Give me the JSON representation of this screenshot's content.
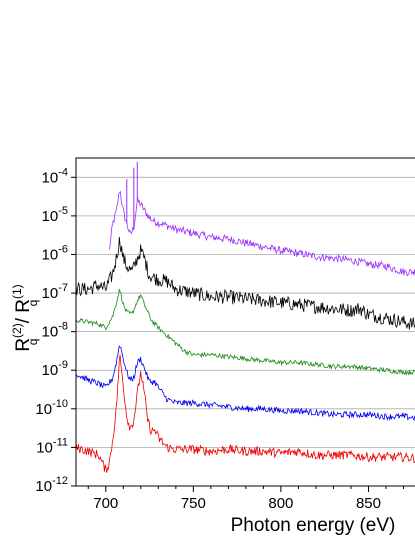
{
  "chart_data": {
    "type": "line",
    "title": "",
    "xlabel": "Photon energy (eV)",
    "ylabel": "R_q^(2) / R_q^(1)",
    "ylabel_parts": {
      "main": "R",
      "sub": "q",
      "sup1": "(2)",
      "slash": " / ",
      "sup2": "(1)"
    },
    "xlim": [
      683,
      880
    ],
    "ylim_log10": [
      -12,
      -3.5
    ],
    "yscale": "log",
    "grid": "horizontal",
    "x_ticks": [
      700,
      750,
      800,
      850
    ],
    "x_tick_labels": [
      "700",
      "750",
      "800",
      "850"
    ],
    "y_ticks": [
      {
        "base": "10",
        "exp": "-4",
        "log10": -4
      },
      {
        "base": "10",
        "exp": "-5",
        "log10": -5
      },
      {
        "base": "10",
        "exp": "-6",
        "log10": -6
      },
      {
        "base": "10",
        "exp": "-7",
        "log10": -7
      },
      {
        "base": "10",
        "exp": "-8",
        "log10": -8
      },
      {
        "base": "10",
        "exp": "-9",
        "log10": -9
      },
      {
        "base": "10",
        "exp": "-10",
        "log10": -10
      },
      {
        "base": "10",
        "exp": "-11",
        "log10": -11
      },
      {
        "base": "10",
        "exp": "-12",
        "log10": -12
      }
    ],
    "series": [
      {
        "color": "#9b30ff",
        "points": [
          [
            702,
            -5.9
          ],
          [
            704,
            -5.2
          ],
          [
            706,
            -4.9
          ],
          [
            708,
            -4.3
          ],
          [
            710,
            -4.9
          ],
          [
            712,
            -5.2
          ],
          [
            714,
            -5.5
          ],
          [
            716,
            -5.3
          ],
          [
            718,
            -4.6
          ],
          [
            720,
            -4.7
          ],
          [
            722,
            -4.85
          ],
          [
            725,
            -5.05
          ],
          [
            728,
            -5.15
          ],
          [
            732,
            -5.2
          ],
          [
            740,
            -5.35
          ],
          [
            750,
            -5.45
          ],
          [
            760,
            -5.55
          ],
          [
            770,
            -5.6
          ],
          [
            780,
            -5.7
          ],
          [
            790,
            -5.8
          ],
          [
            800,
            -5.9
          ],
          [
            810,
            -5.97
          ],
          [
            820,
            -6.05
          ],
          [
            830,
            -6.1
          ],
          [
            840,
            -6.15
          ],
          [
            850,
            -6.25
          ],
          [
            860,
            -6.3
          ],
          [
            870,
            -6.45
          ],
          [
            880,
            -6.45
          ]
        ],
        "spikes": [
          [
            712,
            -4.05
          ],
          [
            716,
            -3.75
          ],
          [
            718,
            -3.6
          ]
        ]
      },
      {
        "color": "#000000",
        "points": [
          [
            683,
            -6.9
          ],
          [
            690,
            -6.9
          ],
          [
            696,
            -6.8
          ],
          [
            700,
            -6.9
          ],
          [
            704,
            -6.5
          ],
          [
            706,
            -6.1
          ],
          [
            708,
            -5.6
          ],
          [
            710,
            -6.1
          ],
          [
            712,
            -6.3
          ],
          [
            715,
            -6.45
          ],
          [
            718,
            -6.1
          ],
          [
            720,
            -5.9
          ],
          [
            722,
            -6.1
          ],
          [
            725,
            -6.55
          ],
          [
            730,
            -6.65
          ],
          [
            735,
            -6.7
          ],
          [
            740,
            -6.9
          ],
          [
            750,
            -7.0
          ],
          [
            760,
            -7.1
          ],
          [
            770,
            -7.1
          ],
          [
            780,
            -7.15
          ],
          [
            790,
            -7.2
          ],
          [
            800,
            -7.25
          ],
          [
            810,
            -7.3
          ],
          [
            820,
            -7.35
          ],
          [
            830,
            -7.4
          ],
          [
            840,
            -7.45
          ],
          [
            845,
            -7.4
          ],
          [
            850,
            -7.55
          ],
          [
            860,
            -7.65
          ],
          [
            870,
            -7.75
          ],
          [
            880,
            -7.85
          ]
        ],
        "noise": 0.18
      },
      {
        "color": "#1a8a1a",
        "points": [
          [
            683,
            -7.7
          ],
          [
            690,
            -7.75
          ],
          [
            696,
            -7.8
          ],
          [
            700,
            -7.9
          ],
          [
            704,
            -7.6
          ],
          [
            708,
            -6.9
          ],
          [
            710,
            -7.3
          ],
          [
            712,
            -7.5
          ],
          [
            715,
            -7.55
          ],
          [
            718,
            -7.2
          ],
          [
            720,
            -7.05
          ],
          [
            722,
            -7.3
          ],
          [
            726,
            -7.7
          ],
          [
            730,
            -7.9
          ],
          [
            735,
            -8.1
          ],
          [
            740,
            -8.3
          ],
          [
            745,
            -8.5
          ],
          [
            750,
            -8.6
          ],
          [
            760,
            -8.6
          ],
          [
            770,
            -8.65
          ],
          [
            780,
            -8.7
          ],
          [
            790,
            -8.75
          ],
          [
            800,
            -8.8
          ],
          [
            810,
            -8.8
          ],
          [
            820,
            -8.85
          ],
          [
            830,
            -8.9
          ],
          [
            840,
            -8.9
          ],
          [
            850,
            -8.95
          ],
          [
            860,
            -9.0
          ],
          [
            870,
            -9.05
          ],
          [
            880,
            -9.05
          ]
        ],
        "noise": 0.06
      },
      {
        "color": "#0000ee",
        "points": [
          [
            683,
            -9.1
          ],
          [
            690,
            -9.25
          ],
          [
            696,
            -9.35
          ],
          [
            700,
            -9.45
          ],
          [
            704,
            -9.2
          ],
          [
            706,
            -8.8
          ],
          [
            708,
            -8.3
          ],
          [
            710,
            -8.7
          ],
          [
            712,
            -9.05
          ],
          [
            714,
            -9.25
          ],
          [
            716,
            -9.2
          ],
          [
            718,
            -8.8
          ],
          [
            720,
            -8.7
          ],
          [
            722,
            -8.95
          ],
          [
            725,
            -9.3
          ],
          [
            728,
            -9.3
          ],
          [
            730,
            -9.45
          ],
          [
            735,
            -9.75
          ],
          [
            740,
            -9.85
          ],
          [
            750,
            -9.85
          ],
          [
            760,
            -9.9
          ],
          [
            770,
            -9.95
          ],
          [
            780,
            -10.0
          ],
          [
            790,
            -10.0
          ],
          [
            800,
            -10.05
          ],
          [
            810,
            -10.05
          ],
          [
            820,
            -10.1
          ],
          [
            830,
            -10.15
          ],
          [
            840,
            -10.15
          ],
          [
            850,
            -10.15
          ],
          [
            860,
            -10.2
          ],
          [
            870,
            -10.2
          ],
          [
            880,
            -10.25
          ]
        ],
        "noise": 0.08
      },
      {
        "color": "#ee0000",
        "points": [
          [
            683,
            -11.0
          ],
          [
            690,
            -11.1
          ],
          [
            696,
            -11.2
          ],
          [
            700,
            -11.6
          ],
          [
            702,
            -11.4
          ],
          [
            704,
            -10.8
          ],
          [
            706,
            -10.0
          ],
          [
            708,
            -8.6
          ],
          [
            710,
            -9.4
          ],
          [
            712,
            -10.2
          ],
          [
            714,
            -10.5
          ],
          [
            716,
            -10.3
          ],
          [
            718,
            -9.6
          ],
          [
            720,
            -9.05
          ],
          [
            722,
            -9.6
          ],
          [
            724,
            -10.3
          ],
          [
            726,
            -10.6
          ],
          [
            728,
            -10.55
          ],
          [
            730,
            -10.75
          ],
          [
            735,
            -11.0
          ],
          [
            740,
            -11.05
          ],
          [
            750,
            -11.05
          ],
          [
            760,
            -11.1
          ],
          [
            770,
            -11.05
          ],
          [
            780,
            -11.1
          ],
          [
            790,
            -11.1
          ],
          [
            800,
            -11.15
          ],
          [
            810,
            -11.1
          ],
          [
            820,
            -11.2
          ],
          [
            830,
            -11.2
          ],
          [
            840,
            -11.2
          ],
          [
            850,
            -11.25
          ],
          [
            860,
            -11.25
          ],
          [
            870,
            -11.25
          ],
          [
            880,
            -11.3
          ]
        ],
        "noise": 0.12
      }
    ]
  }
}
